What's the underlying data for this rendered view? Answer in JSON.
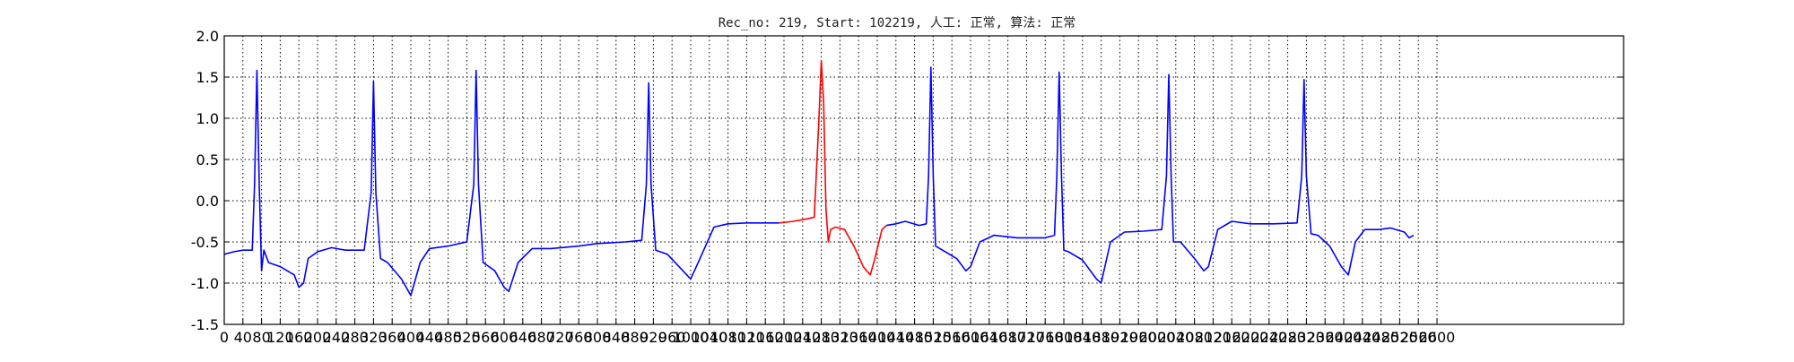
{
  "chart_data": {
    "type": "line",
    "title": "Rec_no: 219, Start: 102219, 人工: 正常, 算法: 正常",
    "xlabel": "",
    "ylabel": "",
    "xlim": [
      0,
      3000
    ],
    "ylim": [
      -1.5,
      2.0
    ],
    "grid": true,
    "yticks": [
      "2.0",
      "1.5",
      "1.0",
      "0.5",
      "0.0",
      "-0.5",
      "-1.0",
      "-1.5"
    ],
    "xtick_labels": [
      "0",
      "40",
      "80",
      "120",
      "160",
      "200",
      "240",
      "280",
      "320",
      "360",
      "400",
      "440",
      "480",
      "520",
      "560",
      "600",
      "640",
      "680",
      "720",
      "760",
      "800",
      "840",
      "880",
      "920",
      "960",
      "1000",
      "1040",
      "1080",
      "1120",
      "1160",
      "1200",
      "1240",
      "1280",
      "1320",
      "1360",
      "1400",
      "1440",
      "1480",
      "1520",
      "1560",
      "1600",
      "1640",
      "1680",
      "1720",
      "1760",
      "1800",
      "1840",
      "1880",
      "1920",
      "1960",
      "2000",
      "2040",
      "2080",
      "2120",
      "2160",
      "2200",
      "2240",
      "2280",
      "2320",
      "2360",
      "2400",
      "2440",
      "2480",
      "2520",
      "2560",
      "2600"
    ],
    "series": [
      {
        "color": "#0000ff",
        "segment": "before",
        "points": [
          [
            0,
            -0.65
          ],
          [
            20,
            -0.62
          ],
          [
            40,
            -0.6
          ],
          [
            60,
            -0.6
          ],
          [
            65,
            0.2
          ],
          [
            70,
            1.58
          ],
          [
            75,
            0.2
          ],
          [
            80,
            -0.85
          ],
          [
            85,
            -0.6
          ],
          [
            95,
            -0.75
          ],
          [
            120,
            -0.8
          ],
          [
            150,
            -0.9
          ],
          [
            160,
            -1.05
          ],
          [
            170,
            -1.0
          ],
          [
            180,
            -0.7
          ],
          [
            200,
            -0.62
          ],
          [
            230,
            -0.57
          ],
          [
            260,
            -0.6
          ],
          [
            300,
            -0.6
          ],
          [
            315,
            0.1
          ],
          [
            320,
            1.45
          ],
          [
            325,
            0.1
          ],
          [
            335,
            -0.7
          ],
          [
            350,
            -0.75
          ],
          [
            380,
            -0.95
          ],
          [
            400,
            -1.15
          ],
          [
            420,
            -0.75
          ],
          [
            440,
            -0.58
          ],
          [
            480,
            -0.55
          ],
          [
            520,
            -0.5
          ],
          [
            535,
            0.2
          ],
          [
            540,
            1.58
          ],
          [
            545,
            0.2
          ],
          [
            555,
            -0.75
          ],
          [
            580,
            -0.85
          ],
          [
            600,
            -1.05
          ],
          [
            610,
            -1.1
          ],
          [
            630,
            -0.75
          ],
          [
            660,
            -0.58
          ],
          [
            700,
            -0.58
          ],
          [
            760,
            -0.55
          ],
          [
            800,
            -0.52
          ],
          [
            860,
            -0.5
          ],
          [
            895,
            -0.48
          ],
          [
            905,
            0.2
          ],
          [
            910,
            1.43
          ],
          [
            915,
            0.2
          ],
          [
            925,
            -0.6
          ],
          [
            950,
            -0.65
          ],
          [
            975,
            -0.8
          ],
          [
            1000,
            -0.95
          ],
          [
            1020,
            -0.7
          ],
          [
            1050,
            -0.32
          ],
          [
            1080,
            -0.28
          ],
          [
            1120,
            -0.27
          ],
          [
            1160,
            -0.27
          ],
          [
            1190,
            -0.27
          ]
        ]
      },
      {
        "color": "#ff0000",
        "segment": "highlighted-beat",
        "points": [
          [
            1190,
            -0.27
          ],
          [
            1220,
            -0.25
          ],
          [
            1250,
            -0.22
          ],
          [
            1265,
            -0.2
          ],
          [
            1275,
            1.0
          ],
          [
            1280,
            1.7
          ],
          [
            1285,
            1.2
          ],
          [
            1290,
            -0.1
          ],
          [
            1295,
            -0.5
          ],
          [
            1300,
            -0.35
          ],
          [
            1310,
            -0.32
          ],
          [
            1330,
            -0.35
          ],
          [
            1350,
            -0.55
          ],
          [
            1370,
            -0.8
          ],
          [
            1385,
            -0.9
          ],
          [
            1395,
            -0.7
          ],
          [
            1410,
            -0.35
          ],
          [
            1420,
            -0.3
          ]
        ]
      },
      {
        "color": "#0000ff",
        "segment": "after",
        "points": [
          [
            1420,
            -0.3
          ],
          [
            1440,
            -0.28
          ],
          [
            1460,
            -0.25
          ],
          [
            1490,
            -0.3
          ],
          [
            1505,
            -0.28
          ],
          [
            1510,
            0.3
          ],
          [
            1515,
            1.62
          ],
          [
            1520,
            0.3
          ],
          [
            1525,
            -0.55
          ],
          [
            1540,
            -0.6
          ],
          [
            1570,
            -0.7
          ],
          [
            1590,
            -0.85
          ],
          [
            1600,
            -0.8
          ],
          [
            1620,
            -0.5
          ],
          [
            1650,
            -0.42
          ],
          [
            1700,
            -0.45
          ],
          [
            1760,
            -0.45
          ],
          [
            1780,
            -0.42
          ],
          [
            1785,
            0.3
          ],
          [
            1790,
            1.56
          ],
          [
            1795,
            0.3
          ],
          [
            1800,
            -0.6
          ],
          [
            1810,
            -0.62
          ],
          [
            1840,
            -0.72
          ],
          [
            1870,
            -0.95
          ],
          [
            1880,
            -1.0
          ],
          [
            1900,
            -0.5
          ],
          [
            1930,
            -0.38
          ],
          [
            1970,
            -0.37
          ],
          [
            2010,
            -0.35
          ],
          [
            2020,
            0.3
          ],
          [
            2025,
            1.53
          ],
          [
            2030,
            0.3
          ],
          [
            2035,
            -0.5
          ],
          [
            2050,
            -0.5
          ],
          [
            2080,
            -0.7
          ],
          [
            2100,
            -0.85
          ],
          [
            2110,
            -0.8
          ],
          [
            2130,
            -0.35
          ],
          [
            2160,
            -0.25
          ],
          [
            2200,
            -0.28
          ],
          [
            2250,
            -0.28
          ],
          [
            2300,
            -0.27
          ],
          [
            2310,
            0.3
          ],
          [
            2315,
            1.47
          ],
          [
            2320,
            0.3
          ],
          [
            2330,
            -0.4
          ],
          [
            2345,
            -0.42
          ],
          [
            2370,
            -0.55
          ],
          [
            2395,
            -0.8
          ],
          [
            2410,
            -0.9
          ],
          [
            2425,
            -0.5
          ],
          [
            2445,
            -0.35
          ],
          [
            2475,
            -0.35
          ],
          [
            2500,
            -0.33
          ],
          [
            2530,
            -0.38
          ],
          [
            2540,
            -0.45
          ],
          [
            2550,
            -0.42
          ]
        ]
      }
    ]
  }
}
